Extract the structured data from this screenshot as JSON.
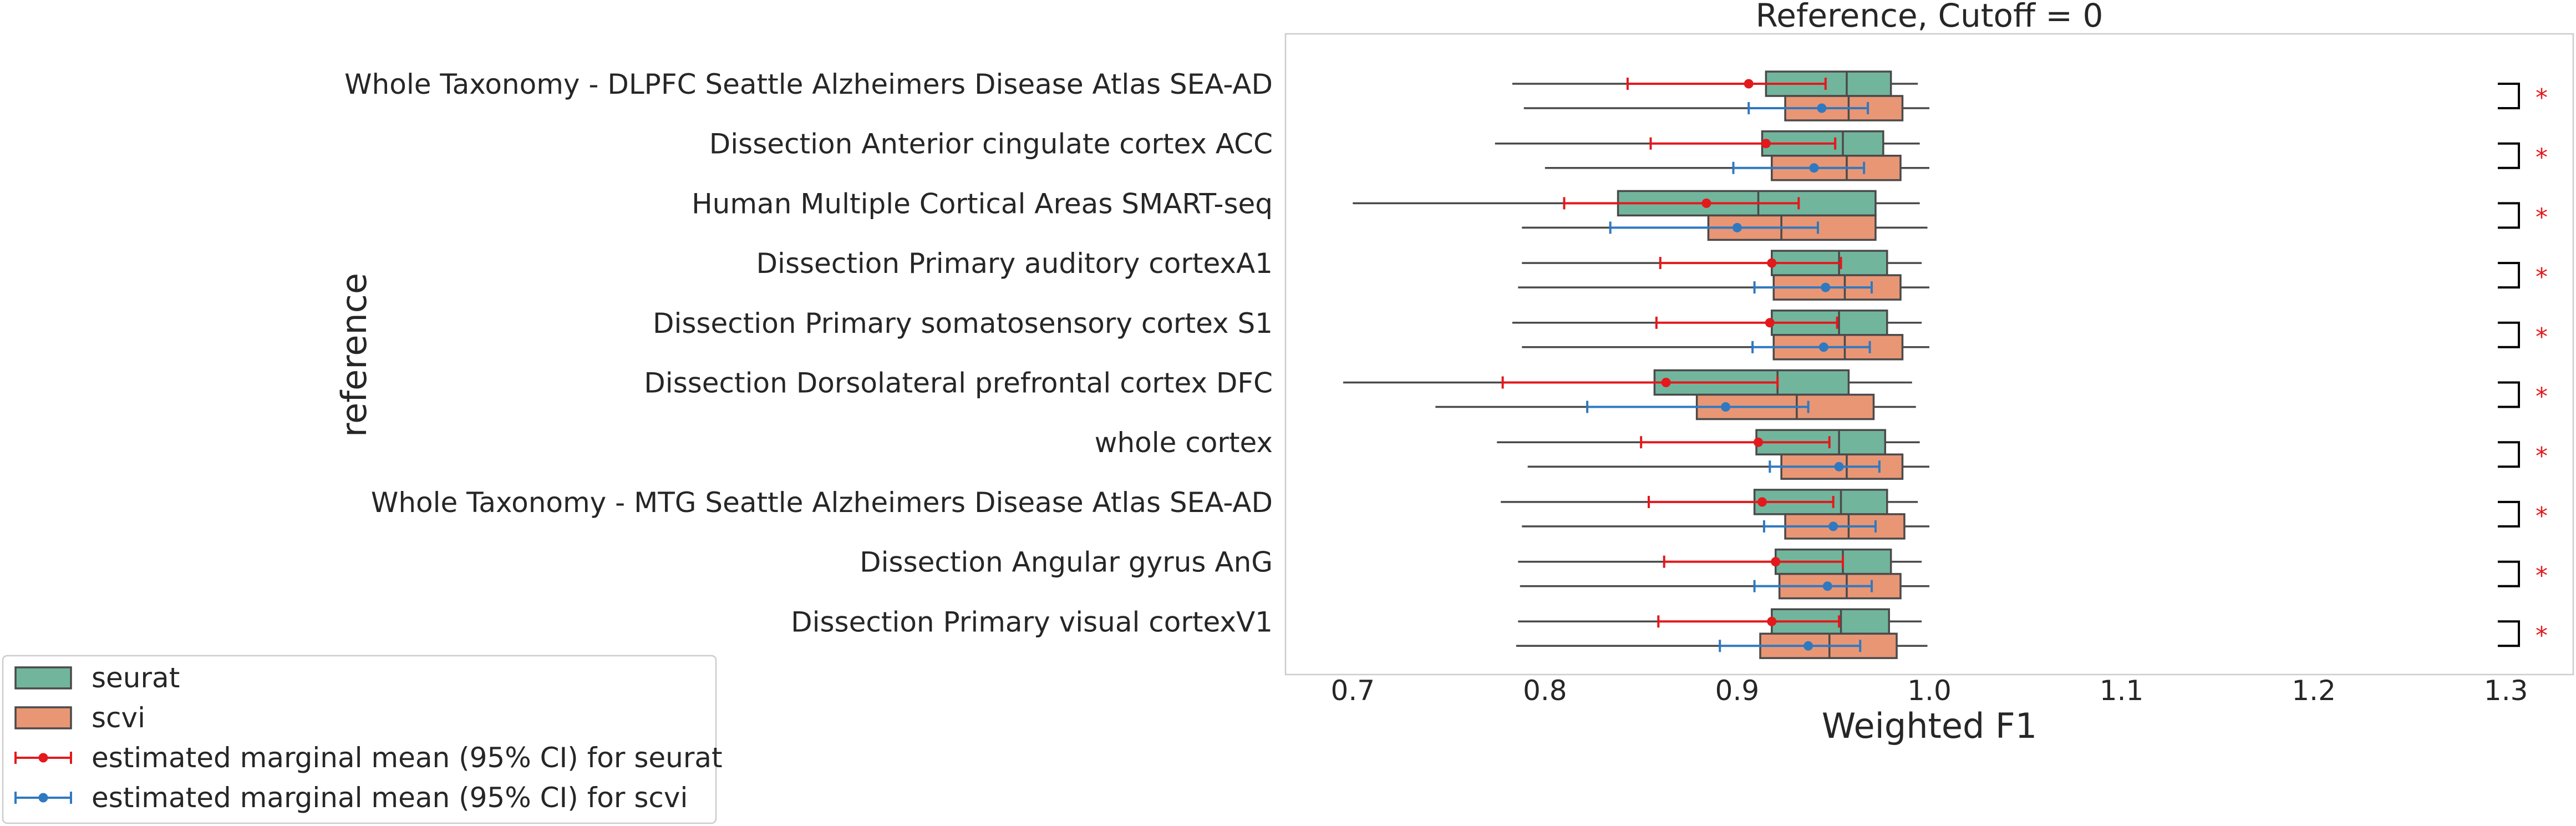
{
  "chart_data": {
    "type": "box",
    "title": "Reference, Cutoff = 0",
    "xlabel": "Weighted F1",
    "ylabel": "reference",
    "xlim": [
      0.665,
      1.335
    ],
    "xticks": [
      0.7,
      0.8,
      0.9,
      1.0,
      1.1,
      1.2,
      1.3
    ],
    "xtick_labels": [
      "0.7",
      "0.8",
      "0.9",
      "1.0",
      "1.1",
      "1.2",
      "1.3"
    ],
    "grid": false,
    "legend_position": "lower-left, outside axes",
    "significance_marker": "*",
    "colors": {
      "seurat": "#72b59d",
      "scvi": "#e99675",
      "seurat_emm": "#e3191c",
      "scvi_emm": "#2f79c0",
      "bracket": "#000000",
      "star": "#e3191c",
      "box_edge": "#4a4a4a"
    },
    "legend": [
      {
        "label": "seurat",
        "kind": "box",
        "color": "#72b59d"
      },
      {
        "label": "scvi",
        "kind": "box",
        "color": "#e99675"
      },
      {
        "label": "estimated marginal mean (95% CI) for seurat",
        "kind": "errorbar",
        "color": "#e3191c"
      },
      {
        "label": "estimated marginal mean (95% CI) for scvi",
        "kind": "errorbar",
        "color": "#2f79c0"
      }
    ],
    "categories": [
      "Whole Taxonomy - DLPFC Seattle Alzheimers Disease Atlas SEA-AD",
      "Dissection Anterior cingulate cortex ACC",
      "Human Multiple Cortical Areas SMART-seq",
      "Dissection Primary auditory cortexA1",
      "Dissection Primary somatosensory cortex S1",
      "Dissection Dorsolateral prefrontal cortex DFC",
      "whole cortex",
      "Whole Taxonomy - MTG Seattle Alzheimers Disease Atlas SEA-AD",
      "Dissection Angular gyrus AnG",
      "Dissection Primary visual cortexV1"
    ],
    "series": [
      {
        "name": "seurat",
        "boxes": [
          {
            "whislo": 0.783,
            "q1": 0.915,
            "med": 0.957,
            "q3": 0.98,
            "whishi": 0.994
          },
          {
            "whislo": 0.774,
            "q1": 0.913,
            "med": 0.955,
            "q3": 0.976,
            "whishi": 0.995
          },
          {
            "whislo": 0.7,
            "q1": 0.838,
            "med": 0.911,
            "q3": 0.972,
            "whishi": 0.995
          },
          {
            "whislo": 0.788,
            "q1": 0.918,
            "med": 0.953,
            "q3": 0.978,
            "whishi": 0.996
          },
          {
            "whislo": 0.783,
            "q1": 0.918,
            "med": 0.953,
            "q3": 0.978,
            "whishi": 0.996
          },
          {
            "whislo": 0.695,
            "q1": 0.857,
            "med": 0.921,
            "q3": 0.958,
            "whishi": 0.991
          },
          {
            "whislo": 0.775,
            "q1": 0.91,
            "med": 0.953,
            "q3": 0.977,
            "whishi": 0.995
          },
          {
            "whislo": 0.777,
            "q1": 0.909,
            "med": 0.954,
            "q3": 0.978,
            "whishi": 0.994
          },
          {
            "whislo": 0.786,
            "q1": 0.92,
            "med": 0.955,
            "q3": 0.98,
            "whishi": 0.996
          },
          {
            "whislo": 0.786,
            "q1": 0.918,
            "med": 0.954,
            "q3": 0.979,
            "whishi": 0.996
          }
        ],
        "emm": [
          {
            "mean": 0.906,
            "lo": 0.843,
            "hi": 0.946
          },
          {
            "mean": 0.915,
            "lo": 0.855,
            "hi": 0.951
          },
          {
            "mean": 0.884,
            "lo": 0.81,
            "hi": 0.932
          },
          {
            "mean": 0.918,
            "lo": 0.86,
            "hi": 0.954
          },
          {
            "mean": 0.917,
            "lo": 0.858,
            "hi": 0.952
          },
          {
            "mean": 0.863,
            "lo": 0.778,
            "hi": 0.921
          },
          {
            "mean": 0.911,
            "lo": 0.85,
            "hi": 0.948
          },
          {
            "mean": 0.913,
            "lo": 0.854,
            "hi": 0.95
          },
          {
            "mean": 0.92,
            "lo": 0.862,
            "hi": 0.955
          },
          {
            "mean": 0.918,
            "lo": 0.859,
            "hi": 0.953
          }
        ]
      },
      {
        "name": "scvi",
        "boxes": [
          {
            "whislo": 0.789,
            "q1": 0.925,
            "med": 0.958,
            "q3": 0.986,
            "whishi": 1.0
          },
          {
            "whislo": 0.8,
            "q1": 0.918,
            "med": 0.957,
            "q3": 0.985,
            "whishi": 1.0
          },
          {
            "whislo": 0.788,
            "q1": 0.885,
            "med": 0.923,
            "q3": 0.972,
            "whishi": 0.999
          },
          {
            "whislo": 0.786,
            "q1": 0.919,
            "med": 0.956,
            "q3": 0.985,
            "whishi": 1.0
          },
          {
            "whislo": 0.788,
            "q1": 0.919,
            "med": 0.956,
            "q3": 0.986,
            "whishi": 1.0
          },
          {
            "whislo": 0.743,
            "q1": 0.879,
            "med": 0.931,
            "q3": 0.971,
            "whishi": 0.993
          },
          {
            "whislo": 0.791,
            "q1": 0.923,
            "med": 0.957,
            "q3": 0.986,
            "whishi": 1.0
          },
          {
            "whislo": 0.788,
            "q1": 0.925,
            "med": 0.958,
            "q3": 0.987,
            "whishi": 1.0
          },
          {
            "whislo": 0.787,
            "q1": 0.922,
            "med": 0.957,
            "q3": 0.985,
            "whishi": 1.0
          },
          {
            "whislo": 0.785,
            "q1": 0.912,
            "med": 0.948,
            "q3": 0.983,
            "whishi": 0.999
          }
        ],
        "emm": [
          {
            "mean": 0.944,
            "lo": 0.906,
            "hi": 0.968
          },
          {
            "mean": 0.94,
            "lo": 0.898,
            "hi": 0.966
          },
          {
            "mean": 0.9,
            "lo": 0.834,
            "hi": 0.942
          },
          {
            "mean": 0.946,
            "lo": 0.909,
            "hi": 0.97
          },
          {
            "mean": 0.945,
            "lo": 0.908,
            "hi": 0.969
          },
          {
            "mean": 0.894,
            "lo": 0.822,
            "hi": 0.937
          },
          {
            "mean": 0.953,
            "lo": 0.917,
            "hi": 0.974
          },
          {
            "mean": 0.95,
            "lo": 0.914,
            "hi": 0.972
          },
          {
            "mean": 0.947,
            "lo": 0.909,
            "hi": 0.97
          },
          {
            "mean": 0.937,
            "lo": 0.891,
            "hi": 0.964
          }
        ]
      }
    ]
  }
}
